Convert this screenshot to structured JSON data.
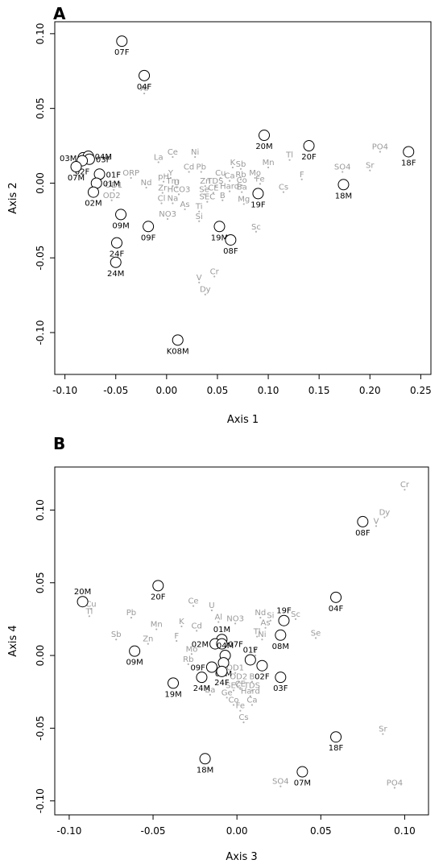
{
  "chart_data": [
    {
      "type": "scatter",
      "panel_label": "A",
      "xlabel": "Axis 1",
      "ylabel": "Axis 2",
      "xlim": [
        -0.11,
        0.26
      ],
      "ylim": [
        -0.128,
        0.108
      ],
      "xticks": [
        -0.1,
        -0.05,
        0.0,
        0.05,
        0.1,
        0.15,
        0.2,
        0.25
      ],
      "xtick_labels": [
        "-0.10",
        "-0.05",
        "0.00",
        "0.05",
        "0.10",
        "0.15",
        "0.20",
        "0.25"
      ],
      "yticks": [
        -0.1,
        -0.05,
        0.0,
        0.05,
        0.1
      ],
      "ytick_labels": [
        "-0.10",
        "-0.05",
        "0.00",
        "0.05",
        "0.10"
      ],
      "sites": [
        {
          "label": "07F",
          "x": -0.044,
          "y": 0.095,
          "pos": "below"
        },
        {
          "label": "04F",
          "x": -0.022,
          "y": 0.072,
          "pos": "below"
        },
        {
          "label": "03M",
          "x": -0.082,
          "y": 0.017,
          "pos": "left"
        },
        {
          "label": "04M",
          "x": -0.077,
          "y": 0.018,
          "pos": "right"
        },
        {
          "label": "03F",
          "x": -0.076,
          "y": 0.016,
          "pos": "right"
        },
        {
          "label": "02F",
          "x": -0.083,
          "y": 0.015,
          "pos": "below"
        },
        {
          "label": "07M",
          "x": -0.089,
          "y": 0.011,
          "pos": "below"
        },
        {
          "label": "01F",
          "x": -0.066,
          "y": 0.006,
          "pos": "right"
        },
        {
          "label": "01M",
          "x": -0.069,
          "y": 0.0,
          "pos": "right"
        },
        {
          "label": "02M",
          "x": -0.072,
          "y": -0.006,
          "pos": "below"
        },
        {
          "label": "09M",
          "x": -0.045,
          "y": -0.021,
          "pos": "below"
        },
        {
          "label": "09F",
          "x": -0.018,
          "y": -0.029,
          "pos": "below"
        },
        {
          "label": "24F",
          "x": -0.049,
          "y": -0.04,
          "pos": "below"
        },
        {
          "label": "24M",
          "x": -0.05,
          "y": -0.053,
          "pos": "below"
        },
        {
          "label": "K08M",
          "x": 0.011,
          "y": -0.105,
          "pos": "below"
        },
        {
          "label": "19M",
          "x": 0.052,
          "y": -0.029,
          "pos": "below"
        },
        {
          "label": "08F",
          "x": 0.063,
          "y": -0.038,
          "pos": "below"
        },
        {
          "label": "20M",
          "x": 0.096,
          "y": 0.032,
          "pos": "below"
        },
        {
          "label": "19F",
          "x": 0.09,
          "y": -0.007,
          "pos": "below"
        },
        {
          "label": "20F",
          "x": 0.14,
          "y": 0.025,
          "pos": "below"
        },
        {
          "label": "18M",
          "x": 0.174,
          "y": -0.001,
          "pos": "below"
        },
        {
          "label": "18F",
          "x": 0.238,
          "y": 0.021,
          "pos": "below"
        }
      ],
      "variables": [
        {
          "label": "Al",
          "x": -0.022,
          "y": 0.06
        },
        {
          "label": "Ce",
          "x": 0.006,
          "y": 0.0175
        },
        {
          "label": "Ni",
          "x": 0.028,
          "y": 0.0175
        },
        {
          "label": "La",
          "x": -0.008,
          "y": 0.014
        },
        {
          "label": "Cd",
          "x": 0.022,
          "y": 0.0075
        },
        {
          "label": "Pb",
          "x": 0.034,
          "y": 0.0075
        },
        {
          "label": "K",
          "x": 0.065,
          "y": 0.0105
        },
        {
          "label": "Sb",
          "x": 0.073,
          "y": 0.0095
        },
        {
          "label": "Mn",
          "x": 0.1,
          "y": 0.0105
        },
        {
          "label": "Tl",
          "x": 0.121,
          "y": 0.0155
        },
        {
          "label": "PO4",
          "x": 0.21,
          "y": 0.021
        },
        {
          "label": "Sr",
          "x": 0.2,
          "y": 0.0085
        },
        {
          "label": "SO4",
          "x": 0.173,
          "y": 0.0075
        },
        {
          "label": "F",
          "x": 0.133,
          "y": 0.0025
        },
        {
          "label": "ORP",
          "x": -0.035,
          "y": 0.0035
        },
        {
          "label": "Y",
          "x": 0.004,
          "y": 0.0035
        },
        {
          "label": "pH",
          "x": -0.003,
          "y": 0.001
        },
        {
          "label": "Cu",
          "x": 0.053,
          "y": 0.0035
        },
        {
          "label": "Ca",
          "x": 0.062,
          "y": 0.0015
        },
        {
          "label": "Rb",
          "x": 0.073,
          "y": 0.0025
        },
        {
          "label": "Mo",
          "x": 0.087,
          "y": 0.0035
        },
        {
          "label": "Nd",
          "x": -0.02,
          "y": -0.003
        },
        {
          "label": "Tm",
          "x": 0.006,
          "y": -0.002
        },
        {
          "label": "U",
          "x": 0.01,
          "y": -0.003
        },
        {
          "label": "Zn",
          "x": 0.038,
          "y": -0.002
        },
        {
          "label": "TDS",
          "x": 0.048,
          "y": -0.002
        },
        {
          "label": "Co",
          "x": 0.074,
          "y": -0.0015
        },
        {
          "label": "Fe",
          "x": 0.092,
          "y": -0.0005
        },
        {
          "label": "Cs",
          "x": 0.115,
          "y": -0.006
        },
        {
          "label": "OD1",
          "x": -0.052,
          "y": -0.0045
        },
        {
          "label": "Zr",
          "x": -0.004,
          "y": -0.0065
        },
        {
          "label": "HCO3",
          "x": 0.012,
          "y": -0.0075
        },
        {
          "label": "Se",
          "x": 0.037,
          "y": -0.0075
        },
        {
          "label": "CE",
          "x": 0.046,
          "y": -0.0065
        },
        {
          "label": "Hard",
          "x": 0.062,
          "y": -0.0055
        },
        {
          "label": "Ba",
          "x": 0.074,
          "y": -0.006
        },
        {
          "label": "OD2",
          "x": -0.054,
          "y": -0.0115
        },
        {
          "label": "Cl",
          "x": -0.005,
          "y": -0.0135
        },
        {
          "label": "Na",
          "x": 0.006,
          "y": -0.0135
        },
        {
          "label": "SEC",
          "x": 0.04,
          "y": -0.0125
        },
        {
          "label": "B",
          "x": 0.055,
          "y": -0.0115
        },
        {
          "label": "Mg",
          "x": 0.076,
          "y": -0.014
        },
        {
          "label": "As",
          "x": 0.018,
          "y": -0.0175
        },
        {
          "label": "Ti",
          "x": 0.032,
          "y": -0.019
        },
        {
          "label": "NO3",
          "x": 0.001,
          "y": -0.024
        },
        {
          "label": "Si",
          "x": 0.032,
          "y": -0.0255
        },
        {
          "label": "Sc",
          "x": 0.088,
          "y": -0.0325
        },
        {
          "label": "V",
          "x": 0.032,
          "y": -0.0665
        },
        {
          "label": "Cr",
          "x": 0.047,
          "y": -0.0625
        },
        {
          "label": "Dy",
          "x": 0.038,
          "y": -0.0745
        }
      ]
    },
    {
      "type": "scatter",
      "panel_label": "B",
      "xlabel": "Axis 3",
      "ylabel": "Axis 4",
      "xlim": [
        -0.1086,
        0.1142
      ],
      "ylim": [
        -0.1096,
        0.1296
      ],
      "xticks": [
        -0.1,
        -0.05,
        0.0,
        0.05,
        0.1
      ],
      "xtick_labels": [
        "-0.10",
        "-0.05",
        "0.00",
        "0.05",
        "0.10"
      ],
      "yticks": [
        -0.1,
        -0.05,
        0.0,
        0.05,
        0.1
      ],
      "ytick_labels": [
        "-0.10",
        "-0.05",
        "0.00",
        "0.05",
        "0.10"
      ],
      "sites": [
        {
          "label": "20M",
          "x": -0.092,
          "y": 0.037,
          "pos": "above"
        },
        {
          "label": "20F",
          "x": -0.047,
          "y": 0.048,
          "pos": "below"
        },
        {
          "label": "09M",
          "x": -0.061,
          "y": 0.003,
          "pos": "below"
        },
        {
          "label": "19M",
          "x": -0.038,
          "y": -0.019,
          "pos": "below"
        },
        {
          "label": "18M",
          "x": -0.019,
          "y": -0.071,
          "pos": "below"
        },
        {
          "label": "01M",
          "x": -0.009,
          "y": 0.011,
          "pos": "above"
        },
        {
          "label": "02M",
          "x": -0.013,
          "y": 0.008,
          "pos": "left"
        },
        {
          "label": "07F",
          "x": -0.009,
          "y": 0.008,
          "pos": "right"
        },
        {
          "label": "04M",
          "x": -0.007,
          "y": 0.0,
          "pos": "above"
        },
        {
          "label": "03M",
          "x": -0.008,
          "y": -0.005,
          "pos": "below"
        },
        {
          "label": "09F",
          "x": -0.015,
          "y": -0.008,
          "pos": "left"
        },
        {
          "label": "24M",
          "x": -0.021,
          "y": -0.015,
          "pos": "below"
        },
        {
          "label": "24F",
          "x": -0.009,
          "y": -0.011,
          "pos": "below"
        },
        {
          "label": "01F",
          "x": 0.008,
          "y": -0.003,
          "pos": "above"
        },
        {
          "label": "02F",
          "x": 0.015,
          "y": -0.007,
          "pos": "below"
        },
        {
          "label": "19F",
          "x": 0.028,
          "y": 0.024,
          "pos": "above"
        },
        {
          "label": "08M",
          "x": 0.026,
          "y": 0.014,
          "pos": "below"
        },
        {
          "label": "03F",
          "x": 0.026,
          "y": -0.015,
          "pos": "below"
        },
        {
          "label": "04F",
          "x": 0.059,
          "y": 0.04,
          "pos": "below"
        },
        {
          "label": "07M",
          "x": 0.039,
          "y": -0.08,
          "pos": "below"
        },
        {
          "label": "08F",
          "x": 0.075,
          "y": 0.092,
          "pos": "below"
        },
        {
          "label": "18F",
          "x": 0.059,
          "y": -0.056,
          "pos": "below"
        }
      ],
      "variables": [
        {
          "label": "Cr",
          "x": 0.1,
          "y": 0.114
        },
        {
          "label": "Dy",
          "x": 0.088,
          "y": 0.095
        },
        {
          "label": "V",
          "x": 0.083,
          "y": 0.089
        },
        {
          "label": "Cu",
          "x": -0.087,
          "y": 0.032
        },
        {
          "label": "Tl",
          "x": -0.088,
          "y": 0.027
        },
        {
          "label": "Pb",
          "x": -0.063,
          "y": 0.026
        },
        {
          "label": "Mn",
          "x": -0.048,
          "y": 0.018
        },
        {
          "label": "Sb",
          "x": -0.072,
          "y": 0.011
        },
        {
          "label": "Zn",
          "x": -0.053,
          "y": 0.008
        },
        {
          "label": "Ce",
          "x": -0.026,
          "y": 0.034
        },
        {
          "label": "U",
          "x": -0.015,
          "y": 0.031
        },
        {
          "label": "K",
          "x": -0.033,
          "y": 0.02
        },
        {
          "label": "Cd",
          "x": -0.024,
          "y": 0.017
        },
        {
          "label": "Al",
          "x": -0.011,
          "y": 0.023
        },
        {
          "label": "F",
          "x": -0.036,
          "y": 0.01
        },
        {
          "label": "Mo",
          "x": -0.027,
          "y": 0.001
        },
        {
          "label": "Rb",
          "x": -0.029,
          "y": -0.006
        },
        {
          "label": "Nd",
          "x": 0.014,
          "y": 0.026
        },
        {
          "label": "NO3",
          "x": -0.001,
          "y": 0.022
        },
        {
          "label": "Si",
          "x": 0.02,
          "y": 0.024
        },
        {
          "label": "As",
          "x": 0.017,
          "y": 0.019
        },
        {
          "label": "Sc",
          "x": 0.035,
          "y": 0.025
        },
        {
          "label": "Tl2",
          "x": 0.012,
          "y": 0.013
        },
        {
          "label": "Ni",
          "x": 0.015,
          "y": 0.011
        },
        {
          "label": "Se",
          "x": 0.047,
          "y": 0.012
        },
        {
          "label": "Y",
          "x": 0.011,
          "y": 0.0
        },
        {
          "label": "OD1",
          "x": -0.001,
          "y": -0.012
        },
        {
          "label": "OD2",
          "x": 0.001,
          "y": -0.018
        },
        {
          "label": "B",
          "x": 0.009,
          "y": -0.018
        },
        {
          "label": "SEC",
          "x": -0.002,
          "y": -0.024
        },
        {
          "label": "CE",
          "x": 0.002,
          "y": -0.023
        },
        {
          "label": "TDS",
          "x": 0.009,
          "y": -0.024
        },
        {
          "label": "Ba",
          "x": -0.016,
          "y": -0.027
        },
        {
          "label": "Ge",
          "x": -0.006,
          "y": -0.029
        },
        {
          "label": "Hard",
          "x": 0.008,
          "y": -0.028
        },
        {
          "label": "Co",
          "x": -0.002,
          "y": -0.034
        },
        {
          "label": "Ca",
          "x": 0.009,
          "y": -0.034
        },
        {
          "label": "Fe",
          "x": 0.002,
          "y": -0.038
        },
        {
          "label": "Cs",
          "x": 0.004,
          "y": -0.046
        },
        {
          "label": "Sr",
          "x": 0.087,
          "y": -0.054
        },
        {
          "label": "SO4",
          "x": 0.026,
          "y": -0.09
        },
        {
          "label": "PO4",
          "x": 0.094,
          "y": -0.091
        }
      ]
    }
  ]
}
